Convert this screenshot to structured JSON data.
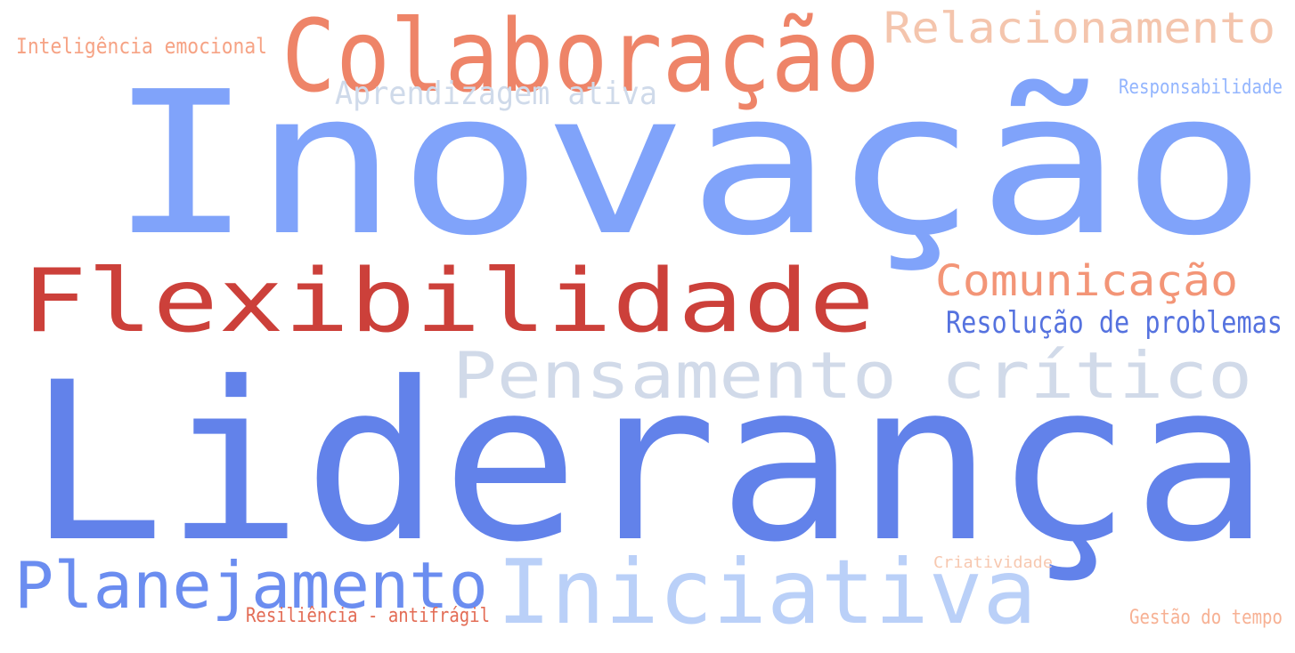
{
  "words": [
    {
      "text": "Inovação",
      "color": "#80a3fa"
    },
    {
      "text": "Liderança",
      "color": "#6282ea"
    },
    {
      "text": "Flexibilidade",
      "color": "#cc403a"
    },
    {
      "text": "Colaboração",
      "color": "#ee8468"
    },
    {
      "text": "Pensamento crítico",
      "color": "#d1dae9"
    },
    {
      "text": "Planejamento",
      "color": "#6b8df0"
    },
    {
      "text": "Iniciativa",
      "color": "#bad0f8"
    },
    {
      "text": "Relacionamento",
      "color": "#f4c5ad"
    },
    {
      "text": "Comunicação",
      "color": "#f39577"
    },
    {
      "text": "Aprendizagem ativa",
      "color": "#cfdaea"
    },
    {
      "text": "Resolução de problemas",
      "color": "#5572df"
    },
    {
      "text": "Inteligência emocional",
      "color": "#f6a385"
    },
    {
      "text": "Responsabilidade",
      "color": "#93b5fe"
    },
    {
      "text": "Resiliência - antifrágil",
      "color": "#e36c55"
    },
    {
      "text": "Criatividade",
      "color": "#f7c8b0"
    },
    {
      "text": "Gestão do tempo",
      "color": "#f7b194"
    }
  ]
}
